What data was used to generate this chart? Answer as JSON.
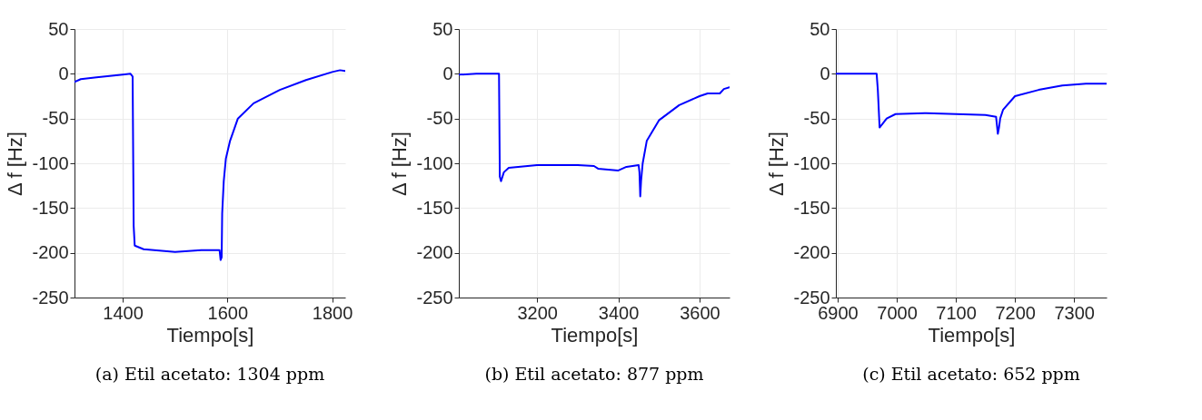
{
  "chart_data": [
    {
      "type": "line",
      "title": "(a) Etil acetato: 1304 ppm",
      "xlabel": "Tiempo[s]",
      "ylabel": "Δ f [Hz]",
      "xlim": [
        1308,
        1825
      ],
      "ylim": [
        -250,
        50
      ],
      "xticks": [
        1400,
        1600,
        1800
      ],
      "yticks": [
        -250,
        -200,
        -150,
        -100,
        -50,
        0,
        50
      ],
      "grid": true,
      "line_style": "solid",
      "marker": "none",
      "x": [
        1308,
        1320,
        1350,
        1400,
        1415,
        1419,
        1421,
        1423,
        1440,
        1500,
        1550,
        1585,
        1587,
        1589,
        1590,
        1593,
        1597,
        1605,
        1620,
        1650,
        1700,
        1750,
        1800,
        1815,
        1825
      ],
      "series": [
        {
          "color": "#0000ff",
          "values": [
            -9,
            -6,
            -4,
            -1,
            0,
            -3,
            -170,
            -192,
            -196,
            -199,
            -197,
            -197,
            -208,
            -205,
            -156,
            -120,
            -95,
            -75,
            -50,
            -33,
            -18,
            -7,
            2,
            4,
            3
          ]
        }
      ]
    },
    {
      "type": "line",
      "title": "(b) Etil acetato: 877 ppm",
      "xlabel": "Tiempo[s]",
      "ylabel": "Δ f [Hz]",
      "xlim": [
        3007,
        3674
      ],
      "ylim": [
        -250,
        50
      ],
      "xticks": [
        3200,
        3400,
        3600
      ],
      "yticks": [
        -250,
        -200,
        -150,
        -100,
        -50,
        0,
        50
      ],
      "grid": true,
      "line_style": "solid",
      "marker": "none",
      "x": [
        3007,
        3050,
        3106,
        3108,
        3111,
        3118,
        3130,
        3200,
        3300,
        3340,
        3350,
        3400,
        3420,
        3450,
        3452,
        3454,
        3456,
        3460,
        3470,
        3500,
        3550,
        3600,
        3620,
        3650,
        3660,
        3674
      ],
      "series": [
        {
          "color": "#0000ff",
          "values": [
            -1,
            0,
            0,
            -115,
            -120,
            -110,
            -105,
            -102,
            -102,
            -103,
            -106,
            -108,
            -104,
            -102,
            -110,
            -137,
            -120,
            -100,
            -75,
            -52,
            -35,
            -25,
            -22,
            -22,
            -17,
            -15
          ]
        }
      ]
    },
    {
      "type": "line",
      "title": "(c) Etil acetato: 652 ppm",
      "xlabel": "Tiempo[s]",
      "ylabel": "Δ f [Hz]",
      "xlim": [
        6897,
        7355
      ],
      "ylim": [
        -250,
        50
      ],
      "xticks": [
        6900,
        7000,
        7100,
        7200,
        7300
      ],
      "yticks": [
        -250,
        -200,
        -150,
        -100,
        -50,
        0,
        50
      ],
      "grid": true,
      "line_style": "solid",
      "marker": "none",
      "x": [
        6897,
        6930,
        6966,
        6968,
        6971,
        6983,
        6998,
        7050,
        7100,
        7150,
        7168,
        7171,
        7173,
        7175,
        7180,
        7200,
        7240,
        7280,
        7320,
        7355
      ],
      "series": [
        {
          "color": "#0000ff",
          "values": [
            0,
            0,
            0,
            -18,
            -60,
            -50,
            -45,
            -44,
            -45,
            -46,
            -48,
            -67,
            -60,
            -50,
            -40,
            -25,
            -18,
            -13,
            -11,
            -11
          ]
        }
      ]
    }
  ]
}
